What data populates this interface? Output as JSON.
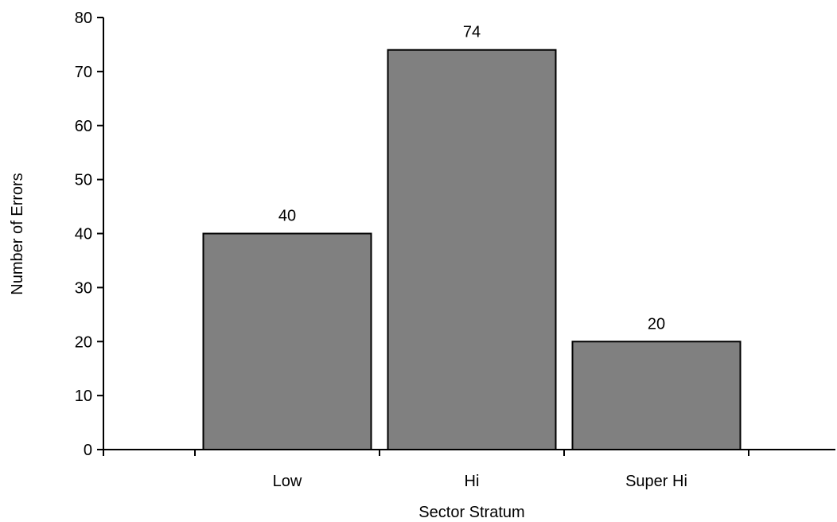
{
  "chart_data": {
    "type": "bar",
    "categories": [
      "Low",
      "Hi",
      "Super Hi"
    ],
    "values": [
      40,
      74,
      20
    ],
    "data_labels": [
      "40",
      "74",
      "20"
    ],
    "title": "",
    "xlabel": "Sector Stratum",
    "ylabel": "Number of Errors",
    "ylim": [
      0,
      80
    ],
    "yticks": [
      0,
      10,
      20,
      30,
      40,
      50,
      60,
      70,
      80
    ],
    "ytick_labels": [
      "0",
      "10",
      "20",
      "30",
      "40",
      "50",
      "60",
      "70",
      "80"
    ],
    "grid": false,
    "legend": "none",
    "bar_color": "#808080",
    "bar_edge_color": "#000000"
  }
}
